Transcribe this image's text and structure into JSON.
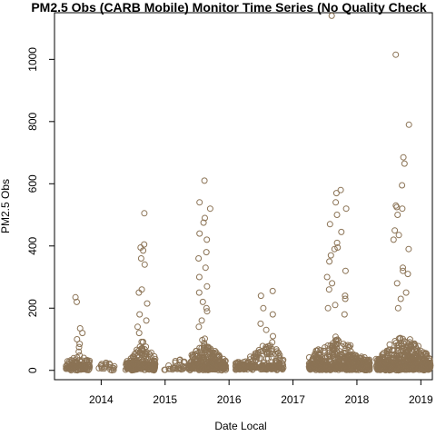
{
  "chart_data": {
    "type": "scatter",
    "title": "PM2.5 Obs (CARB Mobile) Monitor Time Series (No Quality Check",
    "xlabel": "Date Local",
    "ylabel": "PM2.5 Obs",
    "x_ticks": [
      "2014",
      "2015",
      "2016",
      "2017",
      "2018",
      "2019"
    ],
    "y_ticks": [
      "0",
      "200",
      "400",
      "600",
      "800",
      "1000"
    ],
    "xlim": [
      2013.27,
      2019.18
    ],
    "ylim": [
      -30,
      1150
    ],
    "grid": false,
    "legend": "none",
    "marker": "open circle",
    "marker_color": "#8b7355",
    "clusters": [
      {
        "start": 2013.45,
        "end": 2013.82,
        "n": 120,
        "base": 12,
        "spread": 18,
        "peak_center": 2013.65,
        "peaks": [
          235,
          220,
          135,
          120,
          100,
          85,
          75,
          60
        ]
      },
      {
        "start": 2013.95,
        "end": 2014.25,
        "n": 18,
        "base": 8,
        "spread": 8,
        "peak_center": 2014.1,
        "peaks": [
          22,
          18
        ]
      },
      {
        "start": 2014.38,
        "end": 2014.85,
        "n": 240,
        "base": 14,
        "spread": 22,
        "peak_center": 2014.65,
        "peaks": [
          505,
          405,
          395,
          385,
          360,
          340,
          260,
          250,
          215,
          180,
          160,
          140,
          120
        ]
      },
      {
        "start": 2014.98,
        "end": 2015.38,
        "n": 30,
        "base": 10,
        "spread": 10,
        "peak_center": 2015.2,
        "peaks": [
          30,
          25
        ]
      },
      {
        "start": 2015.38,
        "end": 2015.95,
        "n": 300,
        "base": 15,
        "spread": 24,
        "peak_center": 2015.62,
        "peaks": [
          610,
          540,
          520,
          490,
          475,
          440,
          420,
          380,
          360,
          330,
          300,
          270,
          250,
          220,
          200,
          190,
          160,
          140
        ]
      },
      {
        "start": 2016.1,
        "end": 2016.85,
        "n": 240,
        "base": 14,
        "spread": 20,
        "peak_center": 2016.6,
        "peaks": [
          255,
          240,
          200,
          180,
          150,
          130,
          110,
          90,
          75
        ]
      },
      {
        "start": 2017.25,
        "end": 2018.2,
        "n": 520,
        "base": 14,
        "spread": 26,
        "peak_center": 2017.68,
        "peaks": [
          1140,
          580,
          570,
          540,
          520,
          500,
          470,
          445,
          410,
          395,
          390,
          370,
          350,
          320,
          300,
          280,
          260,
          240,
          230,
          210,
          200,
          180
        ]
      },
      {
        "start": 2018.3,
        "end": 2019.15,
        "n": 560,
        "base": 16,
        "spread": 28,
        "peak_center": 2018.72,
        "peaks": [
          1015,
          790,
          685,
          665,
          595,
          530,
          525,
          520,
          500,
          450,
          435,
          420,
          390,
          330,
          320,
          310,
          280,
          250,
          230,
          200
        ]
      }
    ]
  }
}
